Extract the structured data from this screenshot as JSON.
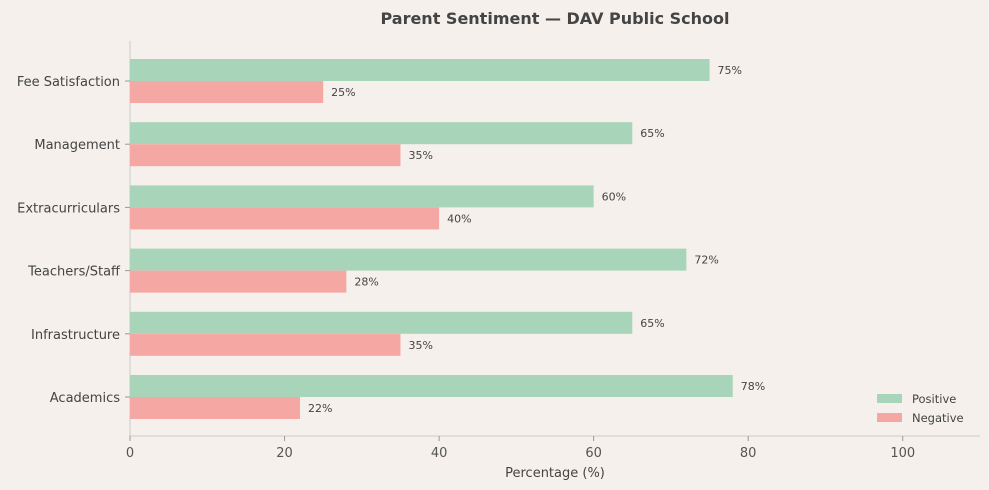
{
  "chart_data": {
    "type": "bar",
    "orientation": "horizontal",
    "title": "Parent Sentiment — DAV Public School",
    "xlabel": "Percentage (%)",
    "ylabel": "",
    "xlim": [
      0,
      110
    ],
    "xticks": [
      0,
      20,
      40,
      60,
      80,
      100
    ],
    "categories": [
      "Fee Satisfaction",
      "Management",
      "Extracurriculars",
      "Teachers/Staff",
      "Infrastructure",
      "Academics"
    ],
    "series": [
      {
        "name": "Positive",
        "color": "#a8d5b9",
        "values": [
          75,
          65,
          60,
          72,
          65,
          78
        ]
      },
      {
        "name": "Negative",
        "color": "#f5a7a3",
        "values": [
          25,
          35,
          40,
          28,
          35,
          22
        ]
      }
    ],
    "value_suffix": "%",
    "grid": false,
    "legend_position": "bottom-right"
  }
}
